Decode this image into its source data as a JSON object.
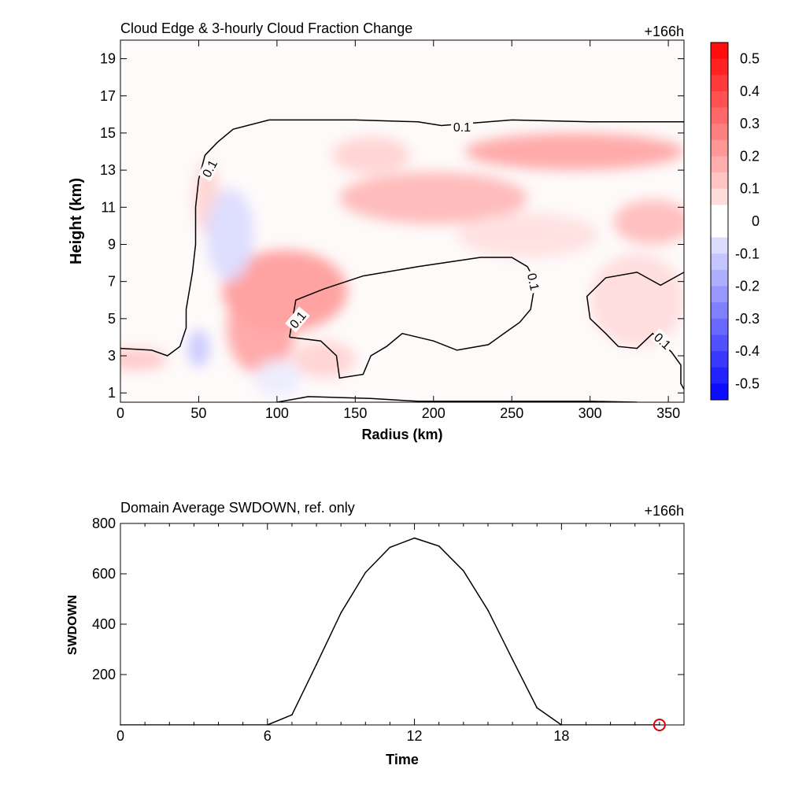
{
  "chart_data": [
    {
      "type": "heatmap",
      "title": "Cloud Edge & 3-hourly Cloud Fraction Change",
      "time_label": "+166h",
      "xlabel": "Radius (km)",
      "ylabel": "Height (km)",
      "xlim": [
        0,
        360
      ],
      "ylim": [
        0.5,
        20
      ],
      "x_ticks": [
        0,
        50,
        100,
        150,
        200,
        250,
        300,
        350
      ],
      "y_ticks": [
        1,
        3,
        5,
        7,
        9,
        11,
        13,
        15,
        17,
        19
      ],
      "colorbar": {
        "range": [
          -0.55,
          0.55
        ],
        "labels": [
          "0.5",
          "0.4",
          "0.3",
          "0.2",
          "0.1",
          "0",
          "-0.1",
          "-0.2",
          "-0.3",
          "-0.4",
          "-0.5"
        ],
        "positive_color": "#ff0000",
        "negative_color": "#0000ff",
        "neutral_color": "#ffffff"
      },
      "contour_level_label": "0.1",
      "contours": [
        {
          "level": 0.1,
          "points": [
            [
              0,
              3.4
            ],
            [
              20,
              3.3
            ],
            [
              30,
              3.0
            ],
            [
              38,
              3.5
            ],
            [
              42,
              4.5
            ],
            [
              42,
              5.5
            ],
            [
              44,
              6.5
            ],
            [
              46,
              7.5
            ],
            [
              48,
              9.0
            ],
            [
              48,
              11.0
            ],
            [
              50,
              12.5
            ],
            [
              54,
              13.8
            ],
            [
              62,
              14.5
            ],
            [
              72,
              15.2
            ],
            [
              95,
              15.7
            ],
            [
              150,
              15.7
            ],
            [
              190,
              15.6
            ],
            [
              205,
              15.4
            ],
            [
              250,
              15.7
            ],
            [
              300,
              15.6
            ],
            [
              360,
              15.6
            ]
          ]
        },
        {
          "level": 0.1,
          "points": [
            [
              108,
              4.0
            ],
            [
              112,
              6.0
            ],
            [
              130,
              6.6
            ],
            [
              155,
              7.3
            ],
            [
              190,
              7.8
            ],
            [
              230,
              8.3
            ],
            [
              250,
              8.3
            ],
            [
              260,
              7.8
            ],
            [
              265,
              7.0
            ],
            [
              262,
              5.5
            ],
            [
              255,
              4.8
            ],
            [
              250,
              4.5
            ],
            [
              235,
              3.6
            ],
            [
              215,
              3.3
            ],
            [
              200,
              3.8
            ],
            [
              180,
              4.2
            ],
            [
              170,
              3.5
            ],
            [
              160,
              3.0
            ],
            [
              155,
              2.0
            ],
            [
              140,
              1.8
            ],
            [
              138,
              3.0
            ],
            [
              128,
              3.8
            ],
            [
              118,
              3.9
            ],
            [
              108,
              4.0
            ]
          ]
        },
        {
          "level": 0.1,
          "points": [
            [
              360,
              7.5
            ],
            [
              345,
              6.8
            ],
            [
              330,
              7.5
            ],
            [
              310,
              7.2
            ],
            [
              298,
              6.2
            ],
            [
              300,
              5.0
            ],
            [
              310,
              4.2
            ],
            [
              318,
              3.5
            ],
            [
              330,
              3.4
            ],
            [
              340,
              4.2
            ],
            [
              352,
              3.2
            ],
            [
              358,
              2.5
            ],
            [
              358,
              1.5
            ],
            [
              360,
              1.2
            ]
          ]
        },
        {
          "level": 0.1,
          "points": [
            [
              100,
              0.5
            ],
            [
              120,
              0.8
            ],
            [
              160,
              0.7
            ],
            [
              190,
              0.55
            ],
            [
              240,
              0.55
            ],
            [
              300,
              0.55
            ],
            [
              330,
              0.5
            ]
          ]
        }
      ],
      "anomalies": [
        {
          "x": 105,
          "y": 6.5,
          "rx": 40,
          "ry": 2.2,
          "v": 0.22
        },
        {
          "x": 90,
          "y": 4.5,
          "rx": 22,
          "ry": 2.5,
          "v": 0.2
        },
        {
          "x": 200,
          "y": 11.5,
          "rx": 60,
          "ry": 1.4,
          "v": 0.16
        },
        {
          "x": 290,
          "y": 14.0,
          "rx": 70,
          "ry": 1.0,
          "v": 0.2
        },
        {
          "x": 160,
          "y": 13.8,
          "rx": 25,
          "ry": 1.0,
          "v": 0.1
        },
        {
          "x": 340,
          "y": 10.2,
          "rx": 25,
          "ry": 1.2,
          "v": 0.15
        },
        {
          "x": 330,
          "y": 6.0,
          "rx": 30,
          "ry": 2.5,
          "v": 0.08
        },
        {
          "x": 260,
          "y": 9.5,
          "rx": 45,
          "ry": 1.2,
          "v": 0.07
        },
        {
          "x": 10,
          "y": 2.8,
          "rx": 20,
          "ry": 0.6,
          "v": 0.12
        },
        {
          "x": 130,
          "y": 2.8,
          "rx": 20,
          "ry": 1.0,
          "v": 0.1
        },
        {
          "x": 55,
          "y": 11.5,
          "rx": 8,
          "ry": 2.0,
          "v": 0.1
        },
        {
          "x": 70,
          "y": 9.5,
          "rx": 15,
          "ry": 2.5,
          "v": -0.08
        },
        {
          "x": 50,
          "y": 3.4,
          "rx": 7,
          "ry": 1.0,
          "v": -0.12
        },
        {
          "x": 100,
          "y": 1.8,
          "rx": 15,
          "ry": 1.0,
          "v": -0.04
        }
      ]
    },
    {
      "type": "line",
      "title": "Domain Average SWDOWN, ref. only",
      "time_label": "+166h",
      "xlabel": "Time",
      "ylabel": "SWDOWN",
      "xlim": [
        0,
        23
      ],
      "ylim": [
        0,
        800
      ],
      "x_ticks": [
        0,
        6,
        12,
        18
      ],
      "y_ticks": [
        200,
        400,
        600,
        800
      ],
      "x": [
        0,
        1,
        2,
        3,
        4,
        5,
        6,
        7,
        8,
        9,
        10,
        11,
        12,
        13,
        14,
        15,
        16,
        17,
        18,
        19,
        20,
        21,
        22
      ],
      "values": [
        0,
        0,
        0,
        0,
        0,
        0,
        0,
        40,
        240,
        445,
        605,
        705,
        742,
        710,
        612,
        455,
        260,
        68,
        0,
        0,
        0,
        0,
        0
      ],
      "marker": {
        "x": 22,
        "y": 0,
        "color": "#dd0000"
      }
    }
  ]
}
